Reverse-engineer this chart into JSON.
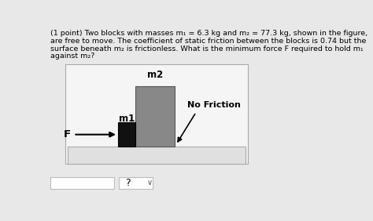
{
  "bg_color": "#e8e8e8",
  "text_color": "#000000",
  "title_lines": [
    "(1 point) Two blocks with masses m₁ = 6.3 kg and m₂ = 77.3 kg, shown in the figure,",
    "are free to move. The coefficient of static friction between the blocks is 0.74 but the",
    "surface beneath m₂ is frictionless. What is the minimum force F required to hold m₁",
    "against m₂?"
  ],
  "m1_color": "#111111",
  "m2_color": "#888888",
  "platform_fill": "#e0e0e0",
  "platform_border": "#aaaaaa",
  "diagram_fill": "#f5f5f5",
  "diagram_border": "#aaaaaa",
  "arrow_color": "#000000",
  "label_m1": "m1",
  "label_m2": "m2",
  "label_F": "F",
  "label_no_friction": "No Friction",
  "input_box_bg": "#ffffff",
  "input_box_border": "#bbbbbb",
  "question_mark": "?",
  "chevron": "∨"
}
